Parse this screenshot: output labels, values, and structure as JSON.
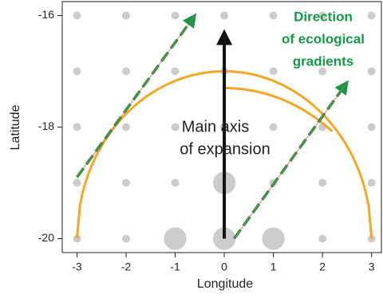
{
  "chart_data": {
    "type": "scatter",
    "xlabel": "Longitude",
    "ylabel": "Latitude",
    "xlim": [
      -3.3,
      3.2
    ],
    "ylim": [
      -20.25,
      -15.75
    ],
    "xticks": [
      -3,
      -2,
      -1,
      0,
      1,
      2,
      3
    ],
    "yticks": [
      -16,
      -18,
      -20
    ],
    "point_color": "#cccccc",
    "x": [
      -3,
      -2,
      -1,
      0,
      1,
      2,
      3,
      -3,
      -2,
      -1,
      0,
      1,
      2,
      3,
      -3,
      -2,
      -1,
      0,
      1,
      2,
      3,
      -3,
      -2,
      -1,
      0,
      1,
      2,
      3,
      -3,
      -2,
      -1,
      0,
      1,
      2,
      3
    ],
    "y": [
      -16,
      -16,
      -16,
      -16,
      -16,
      -16,
      -16,
      -17,
      -17,
      -17,
      -17,
      -17,
      -17,
      -17,
      -18,
      -18,
      -18,
      -18,
      -18,
      -18,
      -18,
      -19,
      -19,
      -19,
      -19,
      -19,
      -19,
      -19,
      -20,
      -20,
      -20,
      -20,
      -20,
      -20,
      -20
    ],
    "sizes": [
      1,
      1,
      1,
      1,
      1,
      1,
      1,
      1,
      1,
      1,
      1,
      1,
      1,
      1,
      1,
      1,
      1,
      1,
      1,
      1,
      1,
      1,
      1,
      1,
      8,
      1,
      1,
      1,
      1,
      1,
      8,
      8,
      8,
      1,
      1
    ],
    "arcs": [
      {
        "cx": 0,
        "cy": -20,
        "r": 3,
        "from_x": -3,
        "to_x": 3,
        "color": "#f5a623"
      },
      {
        "cx": 0,
        "cy": -20.8,
        "r": 3.5,
        "from_x": 0,
        "to_x": 2.2,
        "color": "#f5a623"
      }
    ],
    "arrows": [
      {
        "x": [
          0,
          0
        ],
        "y": [
          -20,
          -16.3
        ],
        "color": "#111111",
        "dashed": false
      },
      {
        "x": [
          -3,
          -0.6
        ],
        "y": [
          -18.9,
          -16
        ],
        "color": "#129a4a",
        "dashed": true
      },
      {
        "x": [
          0.2,
          2.5
        ],
        "y": [
          -20,
          -17.2
        ],
        "color": "#129a4a",
        "dashed": true
      }
    ],
    "annotations": [
      [
        "Main axis",
        "of expansion"
      ],
      [
        "Direction",
        "of ecological",
        "gradients"
      ]
    ]
  }
}
